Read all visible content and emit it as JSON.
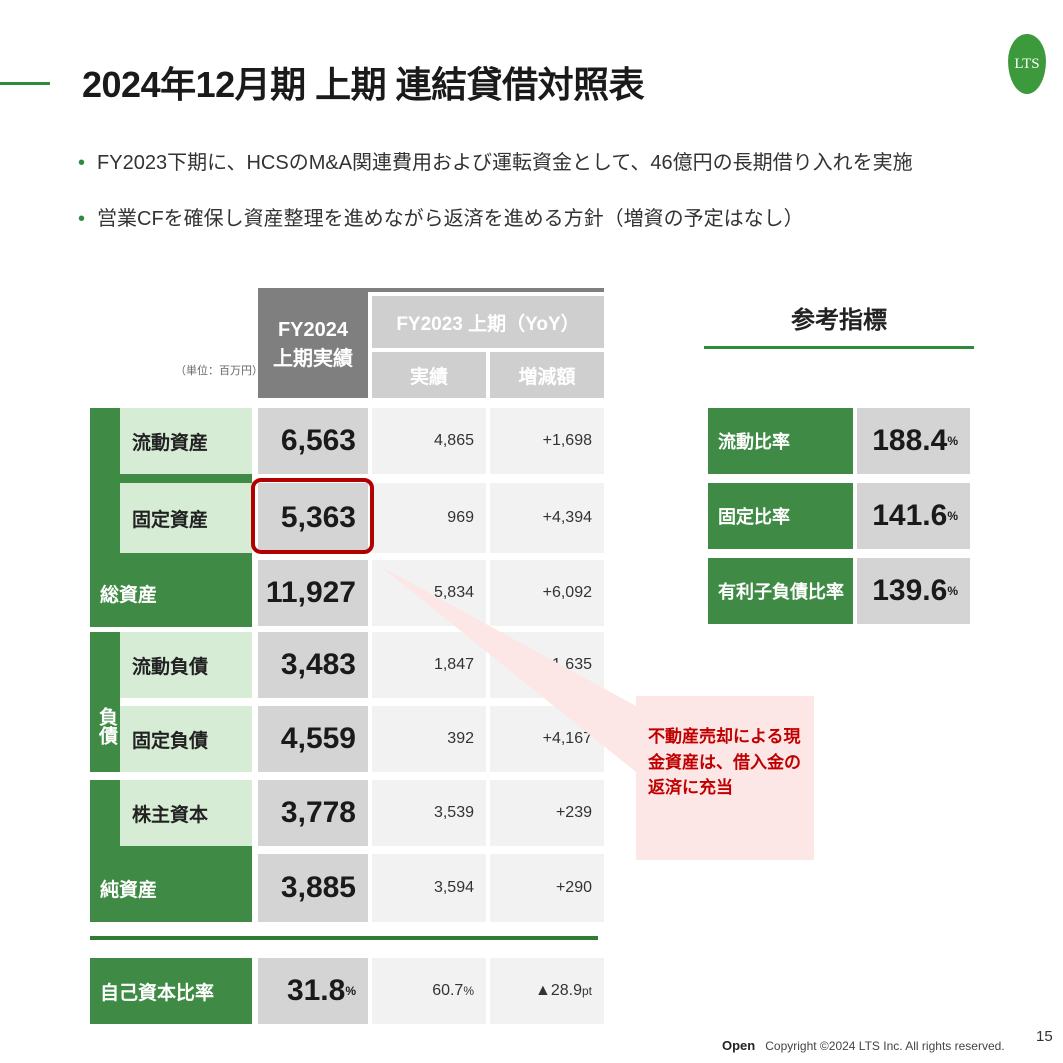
{
  "title": "2024年12月期 上期 連結貸借対照表",
  "bullets": [
    "FY2023下期に、HCSのM&A関連費用および運転資金として、46億円の長期借り入れを実施",
    "営業CFを確保し資産整理を進めながら返済を進める方針（増資の予定はなし）"
  ],
  "logo_text": "LTS",
  "table": {
    "unit": "（単位：百万円）",
    "header": {
      "fy2024_line1": "FY2024",
      "fy2024_line2": "上期実績",
      "fy2023": "FY2023 上期（YoY）",
      "actual": "実績",
      "change": "増減額"
    },
    "group_liabilities": "負債",
    "rows": {
      "current_assets": {
        "label": "流動資産",
        "fy2024": "6,563",
        "fy2023": "4,865",
        "change": "+1,698"
      },
      "fixed_assets": {
        "label": "固定資産",
        "fy2024": "5,363",
        "fy2023": "969",
        "change": "+4,394"
      },
      "total_assets": {
        "label": "総資産",
        "fy2024": "11,927",
        "fy2023": "5,834",
        "change": "+6,092"
      },
      "current_liabilities": {
        "label": "流動負債",
        "fy2024": "3,483",
        "fy2023": "1,847",
        "change": "+1,635"
      },
      "fixed_liabilities": {
        "label": "固定負債",
        "fy2024": "4,559",
        "fy2023": "392",
        "change": "+4,167"
      },
      "share_capital": {
        "label": "株主資本",
        "fy2024": "3,778",
        "fy2023": "3,539",
        "change": "+239"
      },
      "net_assets": {
        "label": "純資産",
        "fy2024": "3,885",
        "fy2023": "3,594",
        "change": "+290"
      },
      "equity_ratio": {
        "label": "自己資本比率",
        "fy2024": "31.8",
        "fy2024_unit": "%",
        "fy2023": "60.7",
        "fy2023_unit": "%",
        "change": "▲28.9",
        "change_unit": "pt"
      }
    }
  },
  "reference": {
    "title": "参考指標",
    "items": [
      {
        "label": "流動比率",
        "value": "188.4",
        "unit": "%"
      },
      {
        "label": "固定比率",
        "value": "141.6",
        "unit": "%"
      },
      {
        "label": "有利子負債比率",
        "value": "139.6",
        "unit": "%"
      }
    ]
  },
  "note": "不動産売却による現金資産は、借入金の返済に充当",
  "footer": {
    "open": "Open",
    "copyright": "Copyright ©2024 LTS Inc. All rights reserved.",
    "page": "15"
  },
  "colors": {
    "green": "#3f8a45",
    "light_green": "#d6ecd4",
    "highlight": "#b00000",
    "note_bg": "#fde6e6"
  }
}
